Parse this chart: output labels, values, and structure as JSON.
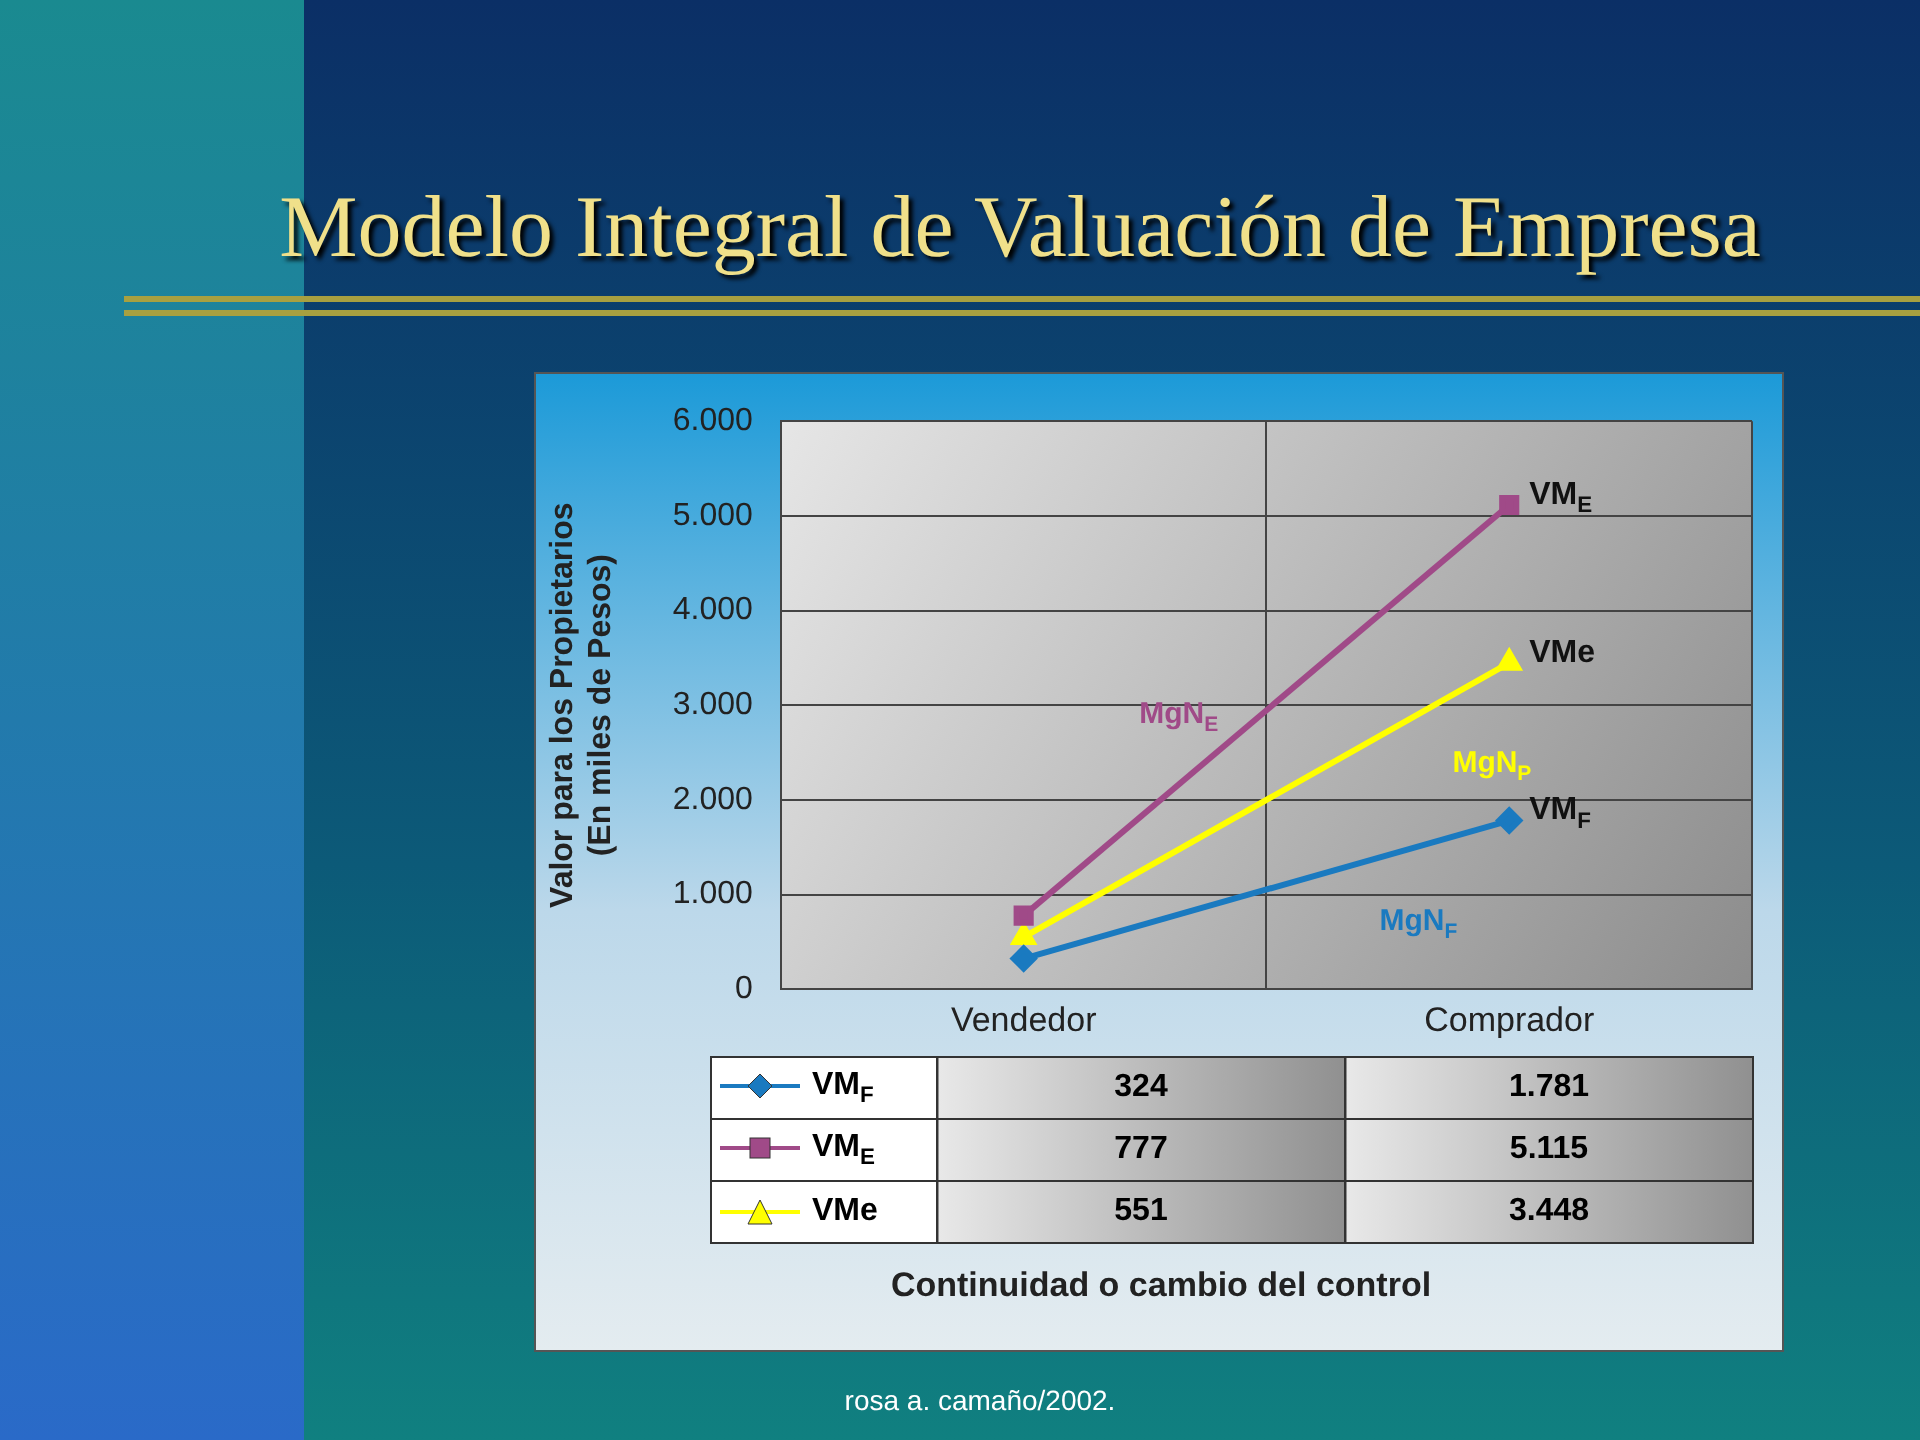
{
  "chart_data": {
    "type": "line",
    "title": "Modelo Integral de Valuación de Empresa",
    "ylabel": "Valor para los Propietarios\n(En miles de Pesos)",
    "categories": [
      "Vendedor",
      "Comprador"
    ],
    "series": [
      {
        "name": "VM$_{F}$",
        "color": "#1a7ac0",
        "marker": "diamond",
        "values": [
          324,
          1781
        ],
        "value_labels": [
          "324",
          "1.781"
        ]
      },
      {
        "name": "VM$_{E}$",
        "color": "#a04a88",
        "marker": "square",
        "values": [
          777,
          5115
        ],
        "value_labels": [
          "777",
          "5.115"
        ]
      },
      {
        "name": "VMe",
        "color": "#ffff00",
        "marker": "triangle",
        "values": [
          551,
          3448
        ],
        "value_labels": [
          "551",
          "3.448"
        ]
      }
    ],
    "ylim": [
      0,
      6000
    ],
    "yticks": [
      0,
      {
        "value": 1000,
        "label": "1.000"
      },
      {
        "value": 2000,
        "label": "2.000"
      },
      {
        "value": 3000,
        "label": "3.000"
      },
      {
        "value": 4000,
        "label": "4.000"
      },
      {
        "value": 5000,
        "label": "5.000"
      },
      {
        "value": 6000,
        "label": "6.000"
      }
    ],
    "grid": true,
    "legend": "bottom",
    "data_labels": true,
    "annotations": [
      "MgN$_{F}$",
      "MgN$_{E}$",
      "MgN$_{P}$",
      "Continuidad o cambio del control",
      "rosa a. camaño/2002."
    ]
  }
}
